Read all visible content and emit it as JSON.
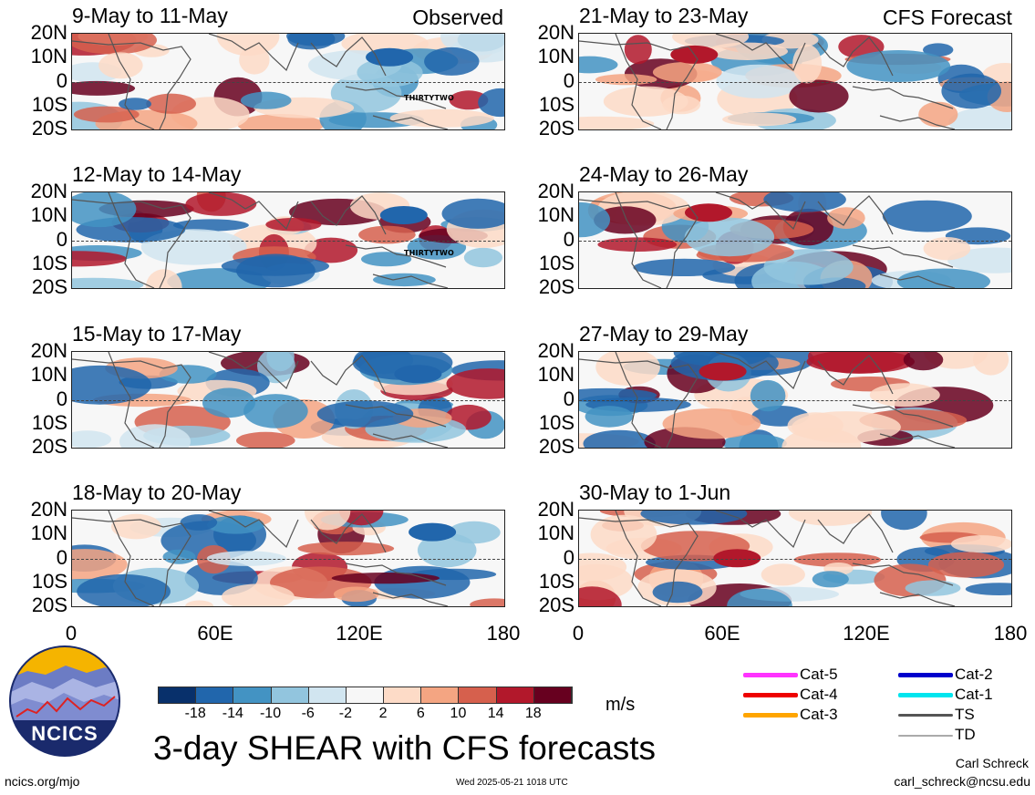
{
  "panels": [
    {
      "id": "p1",
      "title": "9-May to 11-May",
      "tag": "Observed",
      "storm": "THIRTYTWO",
      "col": 0,
      "row": 0
    },
    {
      "id": "p2",
      "title": "12-May to 14-May",
      "tag": "",
      "storm": "THIRTYTWO",
      "col": 0,
      "row": 1
    },
    {
      "id": "p3",
      "title": "15-May to 17-May",
      "tag": "",
      "storm": "",
      "col": 0,
      "row": 2
    },
    {
      "id": "p4",
      "title": "18-May to 20-May",
      "tag": "",
      "storm": "",
      "col": 0,
      "row": 3
    },
    {
      "id": "p5",
      "title": "21-May to 23-May",
      "tag": "CFS Forecast",
      "storm": "",
      "col": 1,
      "row": 0
    },
    {
      "id": "p6",
      "title": "24-May to 26-May",
      "tag": "",
      "storm": "",
      "col": 1,
      "row": 1
    },
    {
      "id": "p7",
      "title": "27-May to 29-May",
      "tag": "",
      "storm": "",
      "col": 1,
      "row": 2
    },
    {
      "id": "p8",
      "title": "30-May to 1-Jun",
      "tag": "",
      "storm": "",
      "col": 1,
      "row": 3
    }
  ],
  "lat_labels": [
    "20N",
    "10N",
    "0",
    "10S",
    "20S"
  ],
  "lon_labels": [
    "0",
    "60E",
    "120E",
    "180"
  ],
  "colorbar": {
    "colors": [
      "#08306b",
      "#2166ac",
      "#4393c3",
      "#92c5de",
      "#d1e5f0",
      "#f7f7f7",
      "#fddbc7",
      "#f4a582",
      "#d6604d",
      "#b2182b",
      "#67001f"
    ],
    "labels": [
      "-18",
      "-14",
      "-10",
      "-6",
      "-2",
      "2",
      "6",
      "10",
      "14",
      "18"
    ],
    "unit": "m/s"
  },
  "legend": [
    {
      "label": "Cat-5",
      "color": "#ff33ff",
      "col": 0
    },
    {
      "label": "Cat-4",
      "color": "#ee0000",
      "col": 0
    },
    {
      "label": "Cat-3",
      "color": "#ffa500",
      "col": 0
    },
    {
      "label": "Cat-2",
      "color": "#0000cc",
      "col": 1
    },
    {
      "label": "Cat-1",
      "color": "#00e5ee",
      "col": 1
    },
    {
      "label": "TS",
      "color": "#555555",
      "col": 1
    },
    {
      "label": "TD",
      "color": "#aaaaaa",
      "col": 1
    }
  ],
  "logo": {
    "text": "NCICS"
  },
  "main_title": "3-day SHEAR with CFS forecasts",
  "footer": {
    "url": "ncics.org/mjo",
    "timestamp": "Wed 2025-05-21 1018 UTC",
    "author": "Carl Schreck",
    "email": "carl_schreck@ncsu.edu"
  }
}
